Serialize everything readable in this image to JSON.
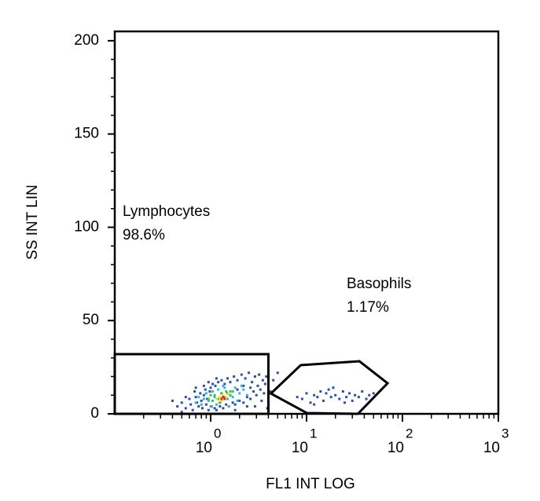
{
  "chart_data": {
    "type": "scatter",
    "xlabel": "FL1 INT LOG",
    "ylabel": "SS INT LIN",
    "xscale": "log",
    "xlim": [
      0.1,
      1000
    ],
    "ylim": [
      0,
      205
    ],
    "xticks": [
      {
        "value": 1,
        "label": "10",
        "exponent": "0"
      },
      {
        "value": 10,
        "label": "10",
        "exponent": "1"
      },
      {
        "value": 100,
        "label": "10",
        "exponent": "2"
      },
      {
        "value": 1000,
        "label": "10",
        "exponent": "3"
      }
    ],
    "xminor_ticks": [
      0.2,
      0.3,
      0.4,
      0.5,
      0.6,
      0.7,
      0.8,
      0.9,
      2,
      3,
      4,
      5,
      6,
      7,
      8,
      9,
      20,
      30,
      40,
      50,
      60,
      70,
      80,
      90,
      200,
      300,
      400,
      500,
      600,
      700,
      800,
      900
    ],
    "yticks": [
      0,
      50,
      100,
      150,
      200
    ],
    "yminor_ticks": [
      10,
      20,
      30,
      40,
      60,
      70,
      80,
      90,
      110,
      120,
      130,
      140,
      160,
      170,
      180,
      190
    ],
    "series": [
      {
        "color": "#2f4fa8",
        "x": [
          0.45,
          0.5,
          0.55,
          0.6,
          0.62,
          0.65,
          0.7,
          0.72,
          0.75,
          0.78,
          0.8,
          0.82,
          0.85,
          0.88,
          0.9,
          0.92,
          0.95,
          0.98,
          1.0,
          1.02,
          1.05,
          1.1,
          1.12,
          1.15,
          1.2,
          1.25,
          1.3,
          1.35,
          1.4,
          1.45,
          1.5,
          1.55,
          1.6,
          1.7,
          1.75,
          1.8,
          1.9,
          2.0,
          2.1,
          2.2,
          2.3,
          2.4,
          2.5,
          2.6,
          2.7,
          2.8,
          2.9,
          3.0,
          3.1,
          3.2,
          3.3,
          3.5,
          3.6,
          3.7,
          3.8,
          0.55,
          0.68,
          0.85,
          1.6,
          1.9,
          2.2,
          2.6,
          1.3,
          0.95,
          0.7,
          1.15,
          2.4,
          3.4,
          0.4,
          0.5,
          4.5,
          5.0,
          4.2,
          3.9,
          2.9,
          1.8,
          9,
          10,
          11,
          12,
          13,
          14,
          15,
          16,
          18,
          20,
          22,
          24,
          26,
          28,
          30,
          32,
          35,
          38,
          42,
          45,
          12,
          17,
          25,
          19,
          8,
          50
        ],
        "y": [
          4,
          6,
          3,
          8,
          5,
          2,
          9,
          6,
          4,
          11,
          7,
          3,
          10,
          13,
          5,
          8,
          2,
          12,
          14,
          4,
          16,
          3,
          15,
          2,
          17,
          4,
          18,
          3,
          16,
          5,
          19,
          4,
          17,
          6,
          20,
          5,
          18,
          7,
          21,
          6,
          19,
          9,
          22,
          8,
          17,
          12,
          20,
          10,
          15,
          21,
          13,
          18,
          11,
          16,
          20,
          9,
          12,
          15,
          10,
          13,
          15,
          14,
          11,
          17,
          14,
          19,
          4,
          7,
          7,
          1,
          18,
          22,
          12,
          3,
          4,
          2,
          8,
          11,
          6,
          10,
          9,
          12,
          7,
          11,
          9,
          10,
          8,
          12,
          9,
          11,
          7,
          10,
          9,
          12,
          8,
          10,
          5,
          13,
          6,
          14,
          9,
          11
        ]
      },
      {
        "color": "#2fb4e0",
        "x": [
          0.7,
          0.75,
          0.8,
          0.9,
          0.95,
          1.0,
          1.05,
          1.1,
          1.2,
          1.25,
          1.4,
          1.5,
          1.6,
          1.7,
          1.8,
          2.0,
          2.2,
          2.4,
          1.15,
          1.55,
          0.85,
          1.9,
          1.35,
          2.1
        ],
        "y": [
          6,
          9,
          5,
          11,
          7,
          4,
          12,
          9,
          13,
          6,
          14,
          8,
          12,
          9,
          14,
          11,
          13,
          10,
          5,
          4,
          8,
          7,
          15,
          15
        ]
      },
      {
        "color": "#3cc04a",
        "x": [
          0.95,
          1.05,
          1.1,
          1.2,
          1.3,
          1.4,
          1.5,
          1.6,
          1.25,
          1.45,
          1.7,
          1.0
        ],
        "y": [
          8,
          7,
          10,
          8,
          11,
          9,
          11,
          10,
          6,
          12,
          12,
          10
        ]
      },
      {
        "color": "#f2e21e",
        "x": [
          1.15,
          1.25,
          1.35,
          1.45,
          1.3,
          1.55
        ],
        "y": [
          8,
          9,
          10,
          9,
          7,
          11
        ]
      },
      {
        "color": "#e3201e",
        "x": [
          1.3,
          1.35,
          1.4
        ],
        "y": [
          8,
          9,
          8
        ]
      }
    ],
    "gates": [
      {
        "name": "Lymphocytes",
        "stat": "98.6%",
        "x": [
          0.1,
          4,
          4,
          0.1
        ],
        "y": [
          0,
          0,
          32,
          32
        ]
      },
      {
        "name": "Basophils",
        "stat": "1.17%",
        "x": [
          4.25,
          8.7,
          35.6,
          70,
          34.3,
          10.1
        ],
        "y": [
          10.9,
          26.1,
          28.2,
          16.4,
          0,
          0.4
        ]
      }
    ]
  }
}
